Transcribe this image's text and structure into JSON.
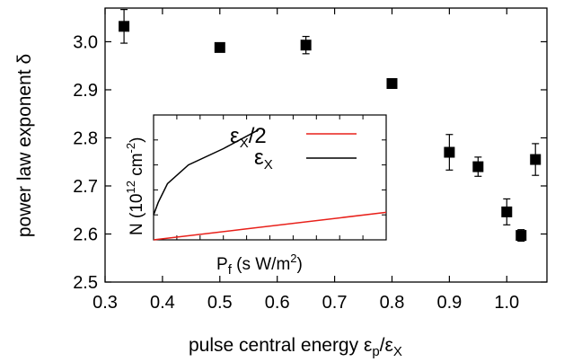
{
  "chart_data": [
    {
      "type": "scatter",
      "xlabel": "pulse central energy εp/εX",
      "ylabel": "power law exponent δ",
      "xlim": [
        0.3,
        1.07
      ],
      "ylim": [
        2.5,
        3.07
      ],
      "x_ticks": [
        "0.3",
        "0.4",
        "0.5",
        "0.6",
        "0.7",
        "0.8",
        "0.9",
        "1.0"
      ],
      "y_ticks": [
        "2.5",
        "2.6",
        "2.7",
        "2.8",
        "2.9",
        "3.0"
      ],
      "grid": false,
      "points": [
        {
          "x": 0.333,
          "y": 3.032,
          "err": 0.035
        },
        {
          "x": 0.5,
          "y": 2.988,
          "err": 0.0
        },
        {
          "x": 0.65,
          "y": 2.993,
          "err": 0.018
        },
        {
          "x": 0.8,
          "y": 2.913,
          "err": 0.0
        },
        {
          "x": 0.9,
          "y": 2.77,
          "err": 0.037
        },
        {
          "x": 0.95,
          "y": 2.74,
          "err": 0.02
        },
        {
          "x": 1.0,
          "y": 2.646,
          "err": 0.027
        },
        {
          "x": 1.025,
          "y": 2.597,
          "err": 0.012
        },
        {
          "x": 1.05,
          "y": 2.755,
          "err": 0.033
        }
      ]
    },
    {
      "type": "line",
      "xlabel": "Pf (s W/m2)",
      "ylabel": "N (10^12 cm^-2)",
      "legend_position": "top-right",
      "series": [
        {
          "name": "εX/2",
          "color": "#e8201a",
          "x": [
            0.0,
            1.0
          ],
          "y": [
            0.0,
            0.22
          ]
        },
        {
          "name": "εX",
          "color": "#000000",
          "x": [
            0.0,
            0.02,
            0.06,
            0.15,
            0.3,
            0.45
          ],
          "y": [
            0.2,
            0.3,
            0.45,
            0.6,
            0.73,
            0.88
          ]
        }
      ]
    }
  ],
  "labels": {
    "ylabel_text": "power law exponent δ",
    "xlabel_main": "pulse central energy ε",
    "xlabel_sub1": "p",
    "xlabel_mid": "/ε",
    "xlabel_sub2": "X",
    "inset_ylabel_main": "N (10",
    "inset_ylabel_sup1": "12",
    "inset_ylabel_mid": " cm",
    "inset_ylabel_sup2": "-2",
    "inset_ylabel_end": ")",
    "inset_xlabel_main": "P",
    "inset_xlabel_sub": "f",
    "inset_xlabel_mid": " (s W/m",
    "inset_xlabel_sup": "2",
    "inset_xlabel_end": ")",
    "legend1_main": "ε",
    "legend1_sub": "X",
    "legend1_end": "/2",
    "legend2_main": "ε",
    "legend2_sub": "X"
  }
}
